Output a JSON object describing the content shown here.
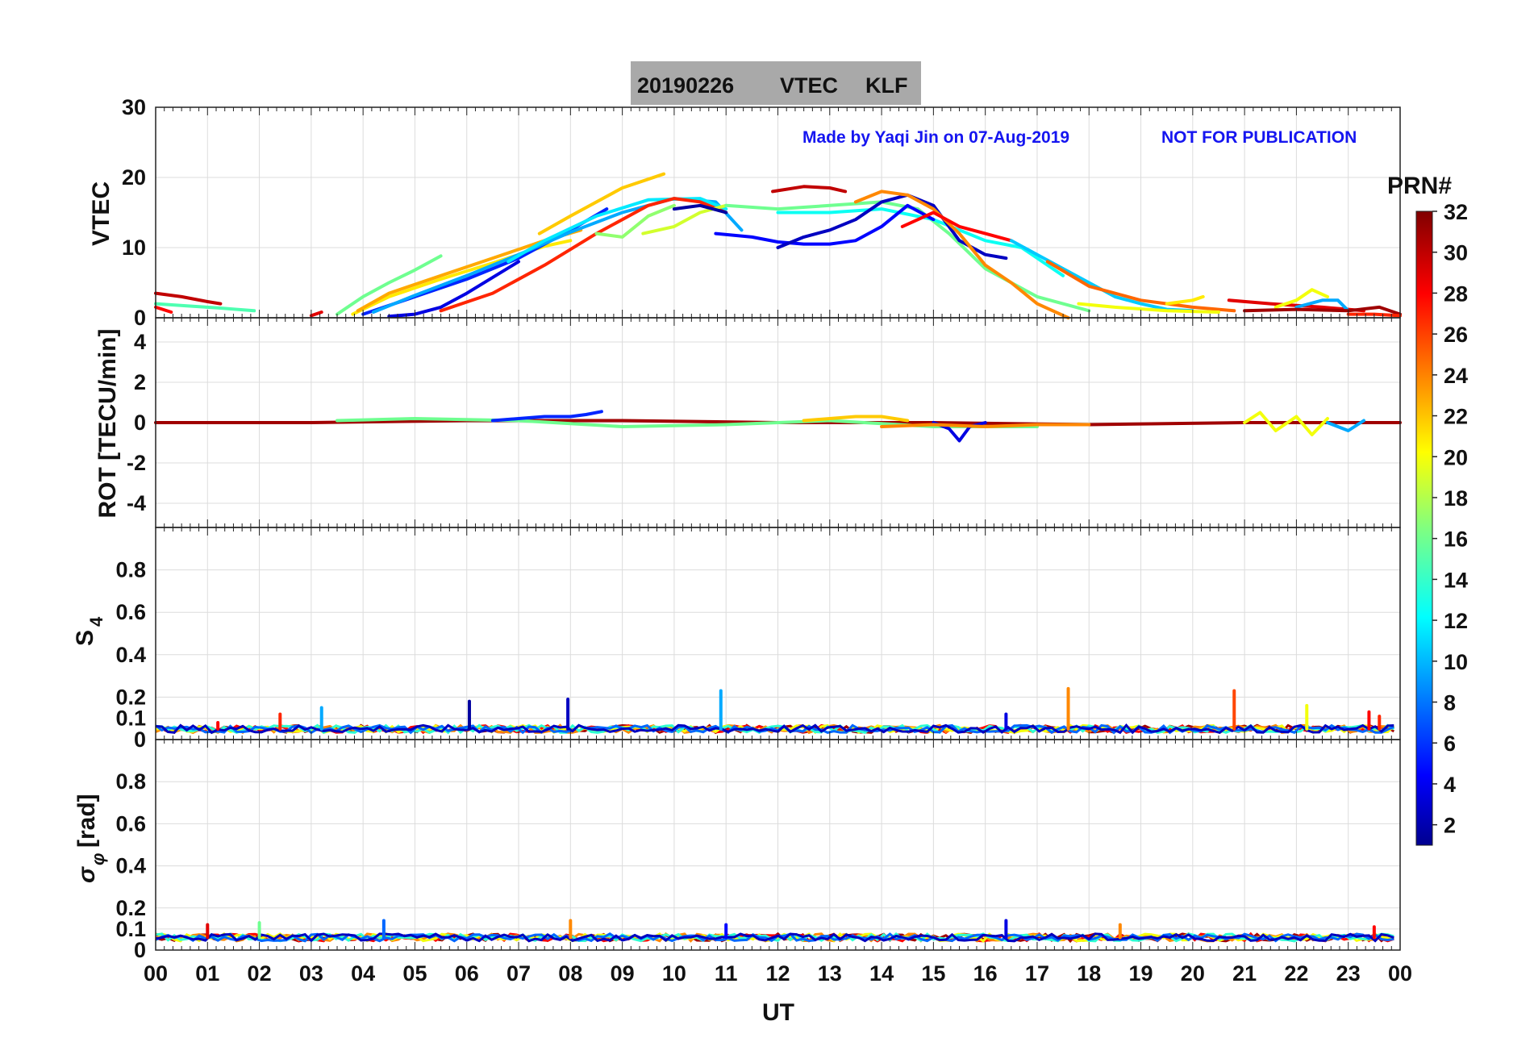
{
  "title": {
    "date": "20190226",
    "quantity": "VTEC",
    "station": "KLF"
  },
  "credit": {
    "author_text": "Made by Yaqi Jin on 07-Aug-2019",
    "notice_text": "NOT FOR PUBLICATION"
  },
  "colorbar": {
    "label": "PRN#",
    "range": [
      1,
      32
    ],
    "ticks": [
      "2",
      "4",
      "6",
      "8",
      "10",
      "12",
      "14",
      "16",
      "18",
      "20",
      "22",
      "24",
      "26",
      "28",
      "30",
      "32"
    ]
  },
  "x_axis": {
    "label": "UT",
    "range": [
      0,
      24
    ],
    "ticks": [
      "00",
      "01",
      "02",
      "03",
      "04",
      "05",
      "06",
      "07",
      "08",
      "09",
      "10",
      "11",
      "12",
      "13",
      "14",
      "15",
      "16",
      "17",
      "18",
      "19",
      "20",
      "21",
      "22",
      "23",
      "00"
    ]
  },
  "chart_data": [
    {
      "type": "line",
      "panel": "vtec",
      "ylabel": "VTEC",
      "ylim": [
        0,
        30
      ],
      "yticks": [
        "0",
        "10",
        "20",
        "30"
      ],
      "series": [
        {
          "prn": 30,
          "x": [
            0.0,
            0.5,
            1.0,
            1.25
          ],
          "y": [
            3.5,
            3.0,
            2.3,
            2.0
          ]
        },
        {
          "prn": 15,
          "x": [
            0.0,
            0.6,
            1.2,
            1.9
          ],
          "y": [
            2.0,
            1.7,
            1.4,
            1.0
          ]
        },
        {
          "prn": 28,
          "x": [
            0.0,
            0.3
          ],
          "y": [
            1.5,
            0.8
          ]
        },
        {
          "prn": 29,
          "x": [
            3.0,
            3.2
          ],
          "y": [
            0.3,
            0.8
          ]
        },
        {
          "prn": 16,
          "x": [
            3.5,
            4.0,
            4.5,
            5.0,
            5.5
          ],
          "y": [
            0.5,
            3.0,
            5.0,
            6.8,
            8.8
          ]
        },
        {
          "prn": 21,
          "x": [
            3.8,
            4.5,
            5.5,
            6.5,
            7.5,
            8.0
          ],
          "y": [
            0.5,
            3.0,
            5.5,
            7.8,
            10.2,
            11.0
          ]
        },
        {
          "prn": 23,
          "x": [
            3.9,
            4.5,
            5.5,
            6.5,
            7.5,
            8.2
          ],
          "y": [
            1.0,
            3.5,
            6.0,
            8.5,
            11.0,
            12.5
          ]
        },
        {
          "prn": 6,
          "x": [
            4.0,
            5.0,
            6.0,
            7.0,
            8.0,
            8.7
          ],
          "y": [
            0.5,
            3.0,
            5.5,
            8.5,
            12.5,
            15.5
          ]
        },
        {
          "prn": 10,
          "x": [
            4.2,
            5.0,
            6.0,
            7.0,
            8.0,
            9.0,
            10.0,
            10.8,
            11.3
          ],
          "y": [
            0.8,
            3.2,
            6.0,
            9.0,
            12.2,
            15.0,
            17.0,
            16.5,
            12.5
          ]
        },
        {
          "prn": 4,
          "x": [
            4.5,
            5.0,
            5.5,
            6.0,
            7.0
          ],
          "y": [
            0.2,
            0.5,
            1.5,
            3.5,
            8.0
          ]
        },
        {
          "prn": 22,
          "x": [
            7.4,
            8.0,
            9.0,
            9.8
          ],
          "y": [
            12.0,
            14.5,
            18.5,
            20.5
          ]
        },
        {
          "prn": 12,
          "x": [
            6.8,
            7.5,
            8.5,
            9.5,
            10.5,
            11.0
          ],
          "y": [
            8.0,
            11.0,
            14.5,
            16.8,
            17.0,
            15.5
          ]
        },
        {
          "prn": 27,
          "x": [
            5.5,
            6.5,
            7.5,
            8.5,
            9.5,
            10.0,
            10.5,
            11.0
          ],
          "y": [
            1.0,
            3.5,
            7.5,
            12.0,
            16.0,
            17.0,
            16.5,
            15.0
          ]
        },
        {
          "prn": 17,
          "x": [
            8.5,
            9.0,
            9.5,
            10.0
          ],
          "y": [
            12.0,
            11.5,
            14.5,
            16.0
          ]
        },
        {
          "prn": 19,
          "x": [
            9.4,
            10.0,
            10.5,
            11.0
          ],
          "y": [
            12.0,
            13.0,
            15.0,
            16.0
          ]
        },
        {
          "prn": 16,
          "x": [
            11.0,
            12.0,
            13.0,
            14.0,
            14.7,
            15.3,
            16.0,
            17.0,
            18.0
          ],
          "y": [
            16.0,
            15.5,
            16.0,
            16.5,
            15.5,
            12.0,
            7.0,
            3.0,
            1.0
          ]
        },
        {
          "prn": 13,
          "x": [
            12.0,
            13.0,
            14.0,
            15.0,
            16.0,
            16.7,
            17.5
          ],
          "y": [
            15.0,
            15.0,
            15.5,
            14.0,
            11.0,
            10.0,
            6.0
          ]
        },
        {
          "prn": 5,
          "x": [
            10.8,
            11.5,
            12.0,
            12.5,
            13.0,
            13.5,
            14.0,
            14.5,
            15.0
          ],
          "y": [
            12.0,
            11.5,
            10.8,
            10.5,
            10.5,
            11.0,
            13.0,
            16.0,
            14.0
          ]
        },
        {
          "prn": 3,
          "x": [
            12.0,
            12.5,
            13.0,
            13.5,
            14.0,
            14.5,
            15.0,
            15.5,
            16.0,
            16.4
          ],
          "y": [
            10.0,
            11.5,
            12.5,
            14.0,
            16.5,
            17.5,
            16.0,
            11.0,
            9.0,
            8.5
          ]
        },
        {
          "prn": 30,
          "x": [
            11.9,
            12.5,
            13.0,
            13.3
          ],
          "y": [
            18.0,
            18.7,
            18.5,
            18.0
          ]
        },
        {
          "prn": 2,
          "x": [
            10.0,
            10.5,
            11.0
          ],
          "y": [
            15.5,
            16.0,
            15.0
          ]
        },
        {
          "prn": 24,
          "x": [
            13.5,
            14.0,
            14.5,
            15.0,
            15.5,
            16.0,
            16.5,
            17.0,
            17.6
          ],
          "y": [
            16.5,
            18.0,
            17.5,
            15.5,
            12.0,
            7.5,
            5.0,
            2.0,
            0.0
          ]
        },
        {
          "prn": 28,
          "x": [
            14.4,
            15.0,
            15.5,
            16.0,
            16.5
          ],
          "y": [
            13.0,
            15.0,
            13.0,
            12.0,
            11.0
          ]
        },
        {
          "prn": 11,
          "x": [
            16.5,
            17.0,
            17.5,
            18.0,
            18.5,
            19.0,
            19.5,
            20.0
          ],
          "y": [
            11.0,
            9.0,
            7.0,
            5.0,
            3.0,
            2.0,
            1.2,
            1.0
          ]
        },
        {
          "prn": 25,
          "x": [
            17.2,
            18.0,
            19.0,
            20.0,
            20.8
          ],
          "y": [
            8.0,
            4.5,
            2.5,
            1.5,
            1.0
          ]
        },
        {
          "prn": 20,
          "x": [
            17.8,
            18.5,
            19.5,
            20.5
          ],
          "y": [
            2.0,
            1.5,
            1.0,
            0.8
          ]
        },
        {
          "prn": 21,
          "x": [
            19.5,
            20.0,
            20.2
          ],
          "y": [
            2.0,
            2.5,
            3.0
          ]
        },
        {
          "prn": 29,
          "x": [
            20.7,
            21.5,
            22.5,
            23.3
          ],
          "y": [
            2.5,
            2.0,
            1.5,
            1.0
          ]
        },
        {
          "prn": 20,
          "x": [
            21.6,
            22.0,
            22.3,
            22.6
          ],
          "y": [
            1.5,
            2.5,
            4.0,
            3.0
          ]
        },
        {
          "prn": 10,
          "x": [
            22.0,
            22.5,
            22.8,
            23.0
          ],
          "y": [
            1.5,
            2.5,
            2.5,
            1.0
          ]
        },
        {
          "prn": 31,
          "x": [
            21.0,
            22.0,
            23.0,
            23.6,
            24.0
          ],
          "y": [
            1.0,
            1.2,
            1.0,
            1.5,
            0.5
          ]
        },
        {
          "prn": 27,
          "x": [
            23.0,
            23.5,
            24.0
          ],
          "y": [
            0.5,
            0.5,
            0.3
          ]
        }
      ]
    },
    {
      "type": "line",
      "panel": "rot",
      "ylabel": "ROT [TECU/min]",
      "ylim": [
        -5.2,
        5.2
      ],
      "yticks": [
        "-4",
        "-2",
        "0",
        "2",
        "4"
      ],
      "series": [
        {
          "prn": 31,
          "x": [
            0.0,
            3.0,
            6.0,
            9.0,
            12.0,
            15.0,
            18.0,
            21.0,
            24.0
          ],
          "y": [
            0.0,
            0.0,
            0.1,
            0.1,
            0.0,
            0.0,
            -0.1,
            0.0,
            0.0
          ]
        },
        {
          "prn": 16,
          "x": [
            3.5,
            5.0,
            7.0,
            9.0,
            11.0,
            13.0,
            15.0,
            17.0
          ],
          "y": [
            0.1,
            0.2,
            0.1,
            -0.2,
            -0.1,
            0.1,
            -0.2,
            -0.2
          ]
        },
        {
          "prn": 6,
          "x": [
            6.5,
            7.0,
            7.5,
            8.0,
            8.3,
            8.6
          ],
          "y": [
            0.1,
            0.2,
            0.3,
            0.3,
            0.4,
            0.55
          ]
        },
        {
          "prn": 22,
          "x": [
            12.5,
            13.0,
            13.5,
            14.0,
            14.5
          ],
          "y": [
            0.1,
            0.2,
            0.3,
            0.3,
            0.1
          ]
        },
        {
          "prn": 4,
          "x": [
            15.0,
            15.3,
            15.5,
            15.7,
            16.0
          ],
          "y": [
            0.0,
            -0.3,
            -0.9,
            -0.2,
            0.0
          ]
        },
        {
          "prn": 20,
          "x": [
            21.0,
            21.3,
            21.6,
            22.0,
            22.3,
            22.6
          ],
          "y": [
            0.0,
            0.5,
            -0.4,
            0.3,
            -0.6,
            0.2
          ]
        },
        {
          "prn": 10,
          "x": [
            22.6,
            23.0,
            23.3
          ],
          "y": [
            0.0,
            -0.4,
            0.1
          ]
        },
        {
          "prn": 24,
          "x": [
            14.0,
            15.0,
            16.0,
            17.0,
            18.0
          ],
          "y": [
            -0.2,
            -0.1,
            -0.2,
            -0.1,
            -0.1
          ]
        }
      ]
    },
    {
      "type": "line",
      "panel": "s4",
      "ylabel": "S4",
      "ylim": [
        0,
        1
      ],
      "yticks": [
        "0",
        "0.1",
        "0.2",
        "0.4",
        "0.6",
        "0.8"
      ],
      "spikes": [
        {
          "prn": 28,
          "x": 1.2,
          "y": 0.08
        },
        {
          "prn": 27,
          "x": 2.4,
          "y": 0.12
        },
        {
          "prn": 10,
          "x": 3.2,
          "y": 0.15
        },
        {
          "prn": 2,
          "x": 6.05,
          "y": 0.18
        },
        {
          "prn": 3,
          "x": 7.95,
          "y": 0.19
        },
        {
          "prn": 10,
          "x": 10.9,
          "y": 0.23
        },
        {
          "prn": 4,
          "x": 16.4,
          "y": 0.12
        },
        {
          "prn": 24,
          "x": 17.6,
          "y": 0.24
        },
        {
          "prn": 26,
          "x": 20.8,
          "y": 0.23
        },
        {
          "prn": 20,
          "x": 22.2,
          "y": 0.16
        },
        {
          "prn": 28,
          "x": 23.4,
          "y": 0.13
        },
        {
          "prn": 27,
          "x": 23.6,
          "y": 0.11
        }
      ],
      "baseline": 0.05
    },
    {
      "type": "line",
      "panel": "sigma_phi",
      "ylabel": "σφ [rad]",
      "ylim": [
        0,
        1
      ],
      "yticks": [
        "0",
        "0.1",
        "0.2",
        "0.4",
        "0.6",
        "0.8"
      ],
      "spikes": [
        {
          "prn": 29,
          "x": 1.0,
          "y": 0.12
        },
        {
          "prn": 16,
          "x": 2.0,
          "y": 0.13
        },
        {
          "prn": 8,
          "x": 4.4,
          "y": 0.14
        },
        {
          "prn": 24,
          "x": 8.0,
          "y": 0.14
        },
        {
          "prn": 5,
          "x": 11.0,
          "y": 0.12
        },
        {
          "prn": 4,
          "x": 16.4,
          "y": 0.14
        },
        {
          "prn": 24,
          "x": 18.6,
          "y": 0.12
        },
        {
          "prn": 28,
          "x": 23.5,
          "y": 0.11
        }
      ],
      "baseline": 0.06
    }
  ]
}
